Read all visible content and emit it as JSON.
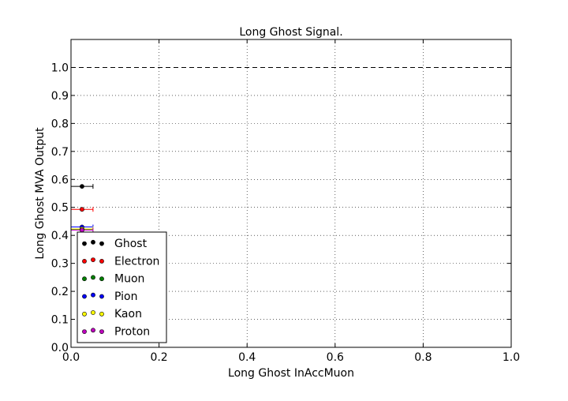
{
  "chart_data": {
    "type": "scatter",
    "title": "Long Ghost Signal.",
    "xlabel": "Long Ghost InAccMuon",
    "ylabel": "Long Ghost MVA Output",
    "xlim": [
      0.0,
      1.0
    ],
    "ylim": [
      0.0,
      1.1
    ],
    "xticks": [
      0.0,
      0.2,
      0.4,
      0.6,
      0.8,
      1.0
    ],
    "xtick_labels": [
      "0.0",
      "0.2",
      "0.4",
      "0.6",
      "0.8",
      "1.0"
    ],
    "yticks": [
      0.0,
      0.1,
      0.2,
      0.3,
      0.4,
      0.5,
      0.6,
      0.7,
      0.8,
      0.9,
      1.0
    ],
    "ytick_labels": [
      "0.0",
      "0.1",
      "0.2",
      "0.3",
      "0.4",
      "0.5",
      "0.6",
      "0.7",
      "0.8",
      "0.9",
      "1.0"
    ],
    "grid": true,
    "reference_line": {
      "y": 1.0,
      "style": "dashed",
      "color": "#000000"
    },
    "legend_position": "lower-left",
    "series": [
      {
        "name": "Ghost",
        "color": "#000000",
        "x": [
          0.025
        ],
        "y": [
          0.575
        ],
        "xerr": [
          0.025
        ]
      },
      {
        "name": "Electron",
        "color": "#ff0000",
        "x": [
          0.025
        ],
        "y": [
          0.493
        ],
        "xerr": [
          0.025
        ]
      },
      {
        "name": "Muon",
        "color": "#008000",
        "x": [
          0.025
        ],
        "y": [
          0.421
        ],
        "xerr": [
          0.025
        ]
      },
      {
        "name": "Pion",
        "color": "#0000ff",
        "x": [
          0.025
        ],
        "y": [
          0.43
        ],
        "xerr": [
          0.025
        ]
      },
      {
        "name": "Kaon",
        "color": "#ffff00",
        "x": [
          0.025
        ],
        "y": [
          0.423
        ],
        "xerr": [
          0.025
        ]
      },
      {
        "name": "Proton",
        "color": "#bf00bf",
        "x": [
          0.025
        ],
        "y": [
          0.419
        ],
        "xerr": [
          0.025
        ]
      }
    ]
  }
}
